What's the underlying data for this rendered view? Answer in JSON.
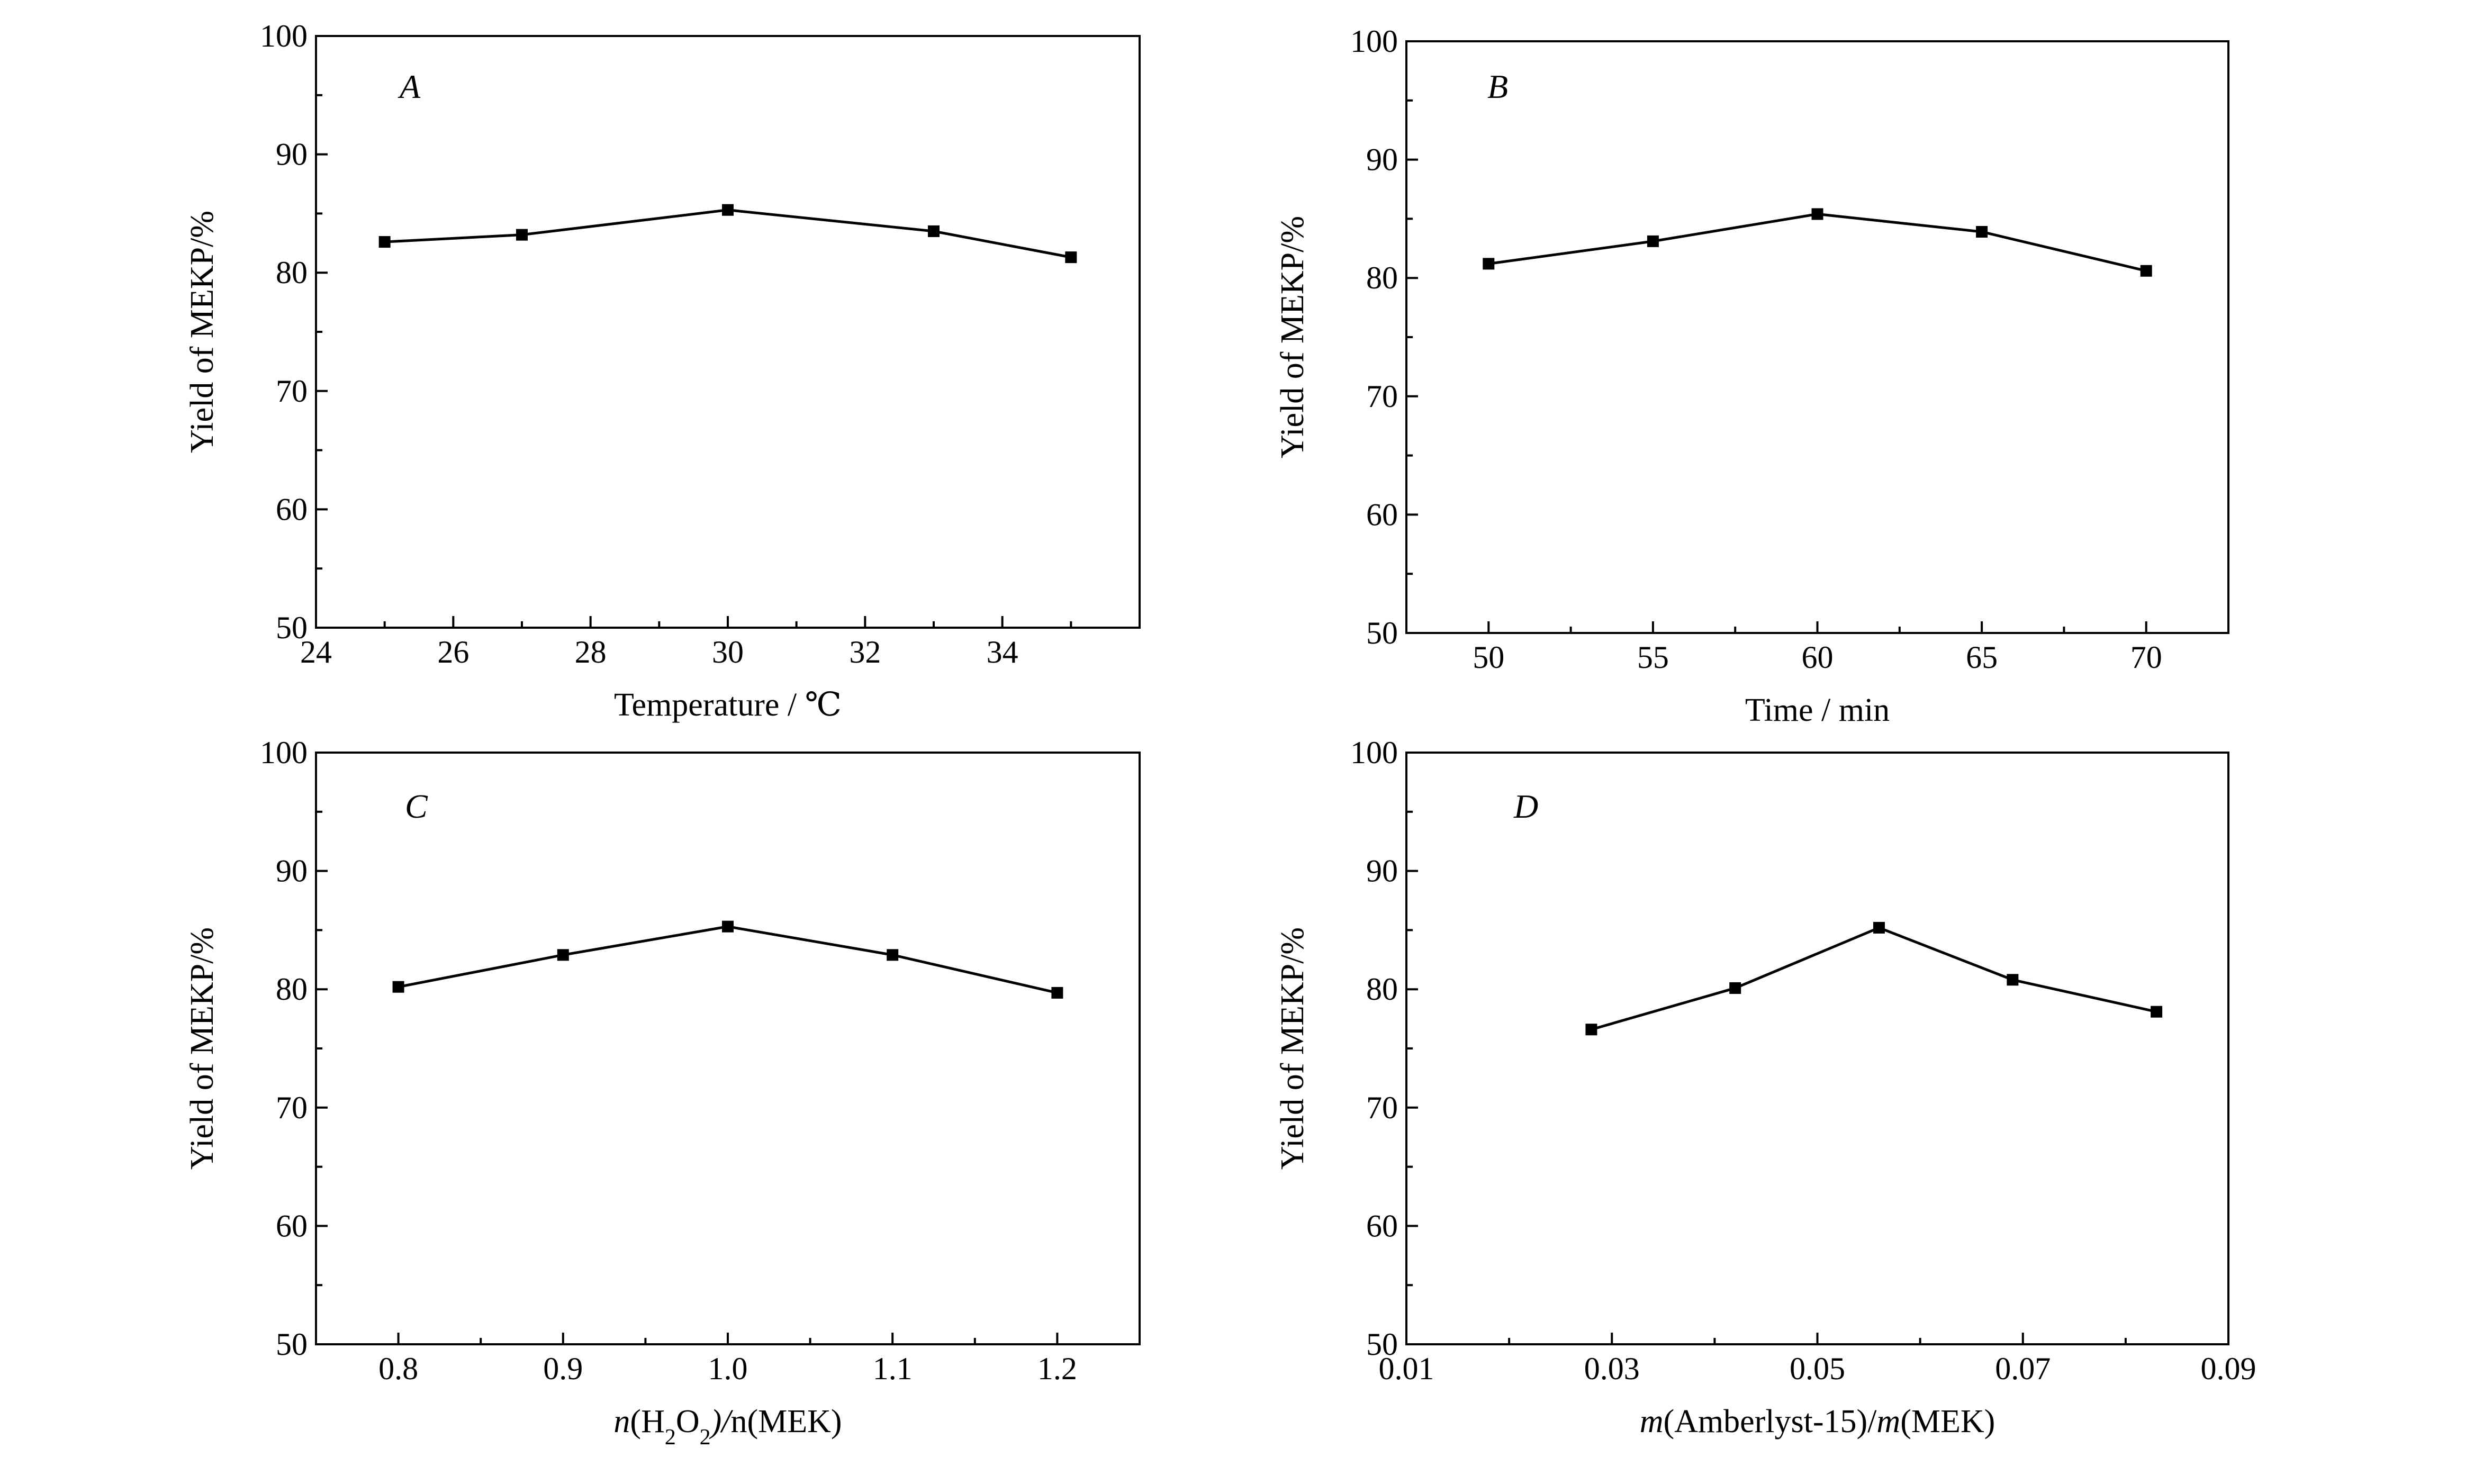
{
  "chart_data": [
    {
      "type": "line",
      "panel": "A",
      "x": [
        25,
        27,
        30,
        33,
        35
      ],
      "series": [
        {
          "values": [
            82.6,
            83.2,
            85.3,
            83.5,
            81.3
          ]
        }
      ],
      "xlim": [
        24,
        36
      ],
      "ylim": [
        50,
        100
      ],
      "xticks": [
        24,
        26,
        28,
        30,
        32,
        34
      ],
      "yticks": [
        50,
        60,
        70,
        80,
        90,
        100
      ],
      "xlabel": "Temperature / ℃",
      "ylabel": "Yield of MEKP/%",
      "grid": false
    },
    {
      "type": "line",
      "panel": "B",
      "x": [
        50,
        55,
        60,
        65,
        70
      ],
      "series": [
        {
          "values": [
            81.2,
            83.1,
            85.4,
            83.9,
            80.6
          ]
        }
      ],
      "xlim": [
        47.5,
        72.5
      ],
      "ylim": [
        50,
        100
      ],
      "xticks": [
        50,
        55,
        60,
        65,
        70
      ],
      "yticks": [
        50,
        60,
        70,
        80,
        90,
        100
      ],
      "xlabel": "Time / min",
      "ylabel": "Yield of MEKP/%",
      "grid": false
    },
    {
      "type": "line",
      "panel": "C",
      "x": [
        0.8,
        0.9,
        1.0,
        1.1,
        1.2
      ],
      "series": [
        {
          "values": [
            80.2,
            82.9,
            85.3,
            82.9,
            79.7
          ]
        }
      ],
      "xlim": [
        0.75,
        1.25
      ],
      "ylim": [
        50,
        100
      ],
      "xticks": [
        0.8,
        0.9,
        1.0,
        1.1,
        1.2
      ],
      "xtick_labels": [
        "0.8",
        "0.9",
        "1.0",
        "1.1",
        "1.2"
      ],
      "yticks": [
        50,
        60,
        70,
        80,
        90,
        100
      ],
      "xlabel_parts": [
        "n",
        "(H",
        "2",
        "O",
        "2",
        ")/",
        "n",
        "(MEK)"
      ],
      "ylabel": "Yield of MEKP/%",
      "grid": false
    },
    {
      "type": "line",
      "panel": "D",
      "x": [
        0.028,
        0.042,
        0.056,
        0.069,
        0.083
      ],
      "series": [
        {
          "values": [
            76.6,
            80.1,
            85.2,
            80.8,
            78.1
          ]
        }
      ],
      "xlim": [
        0.01,
        0.09
      ],
      "ylim": [
        50,
        100
      ],
      "xticks": [
        0.01,
        0.03,
        0.05,
        0.07,
        0.09
      ],
      "xtick_labels": [
        "0.01",
        "0.03",
        "0.05",
        "0.07",
        "0.09"
      ],
      "yticks": [
        50,
        60,
        70,
        80,
        90,
        100
      ],
      "xlabel_parts": [
        "m",
        "(Amberlyst-15)/",
        "m",
        "(MEK)"
      ],
      "ylabel": "Yield of MEKP/%",
      "grid": false
    }
  ]
}
